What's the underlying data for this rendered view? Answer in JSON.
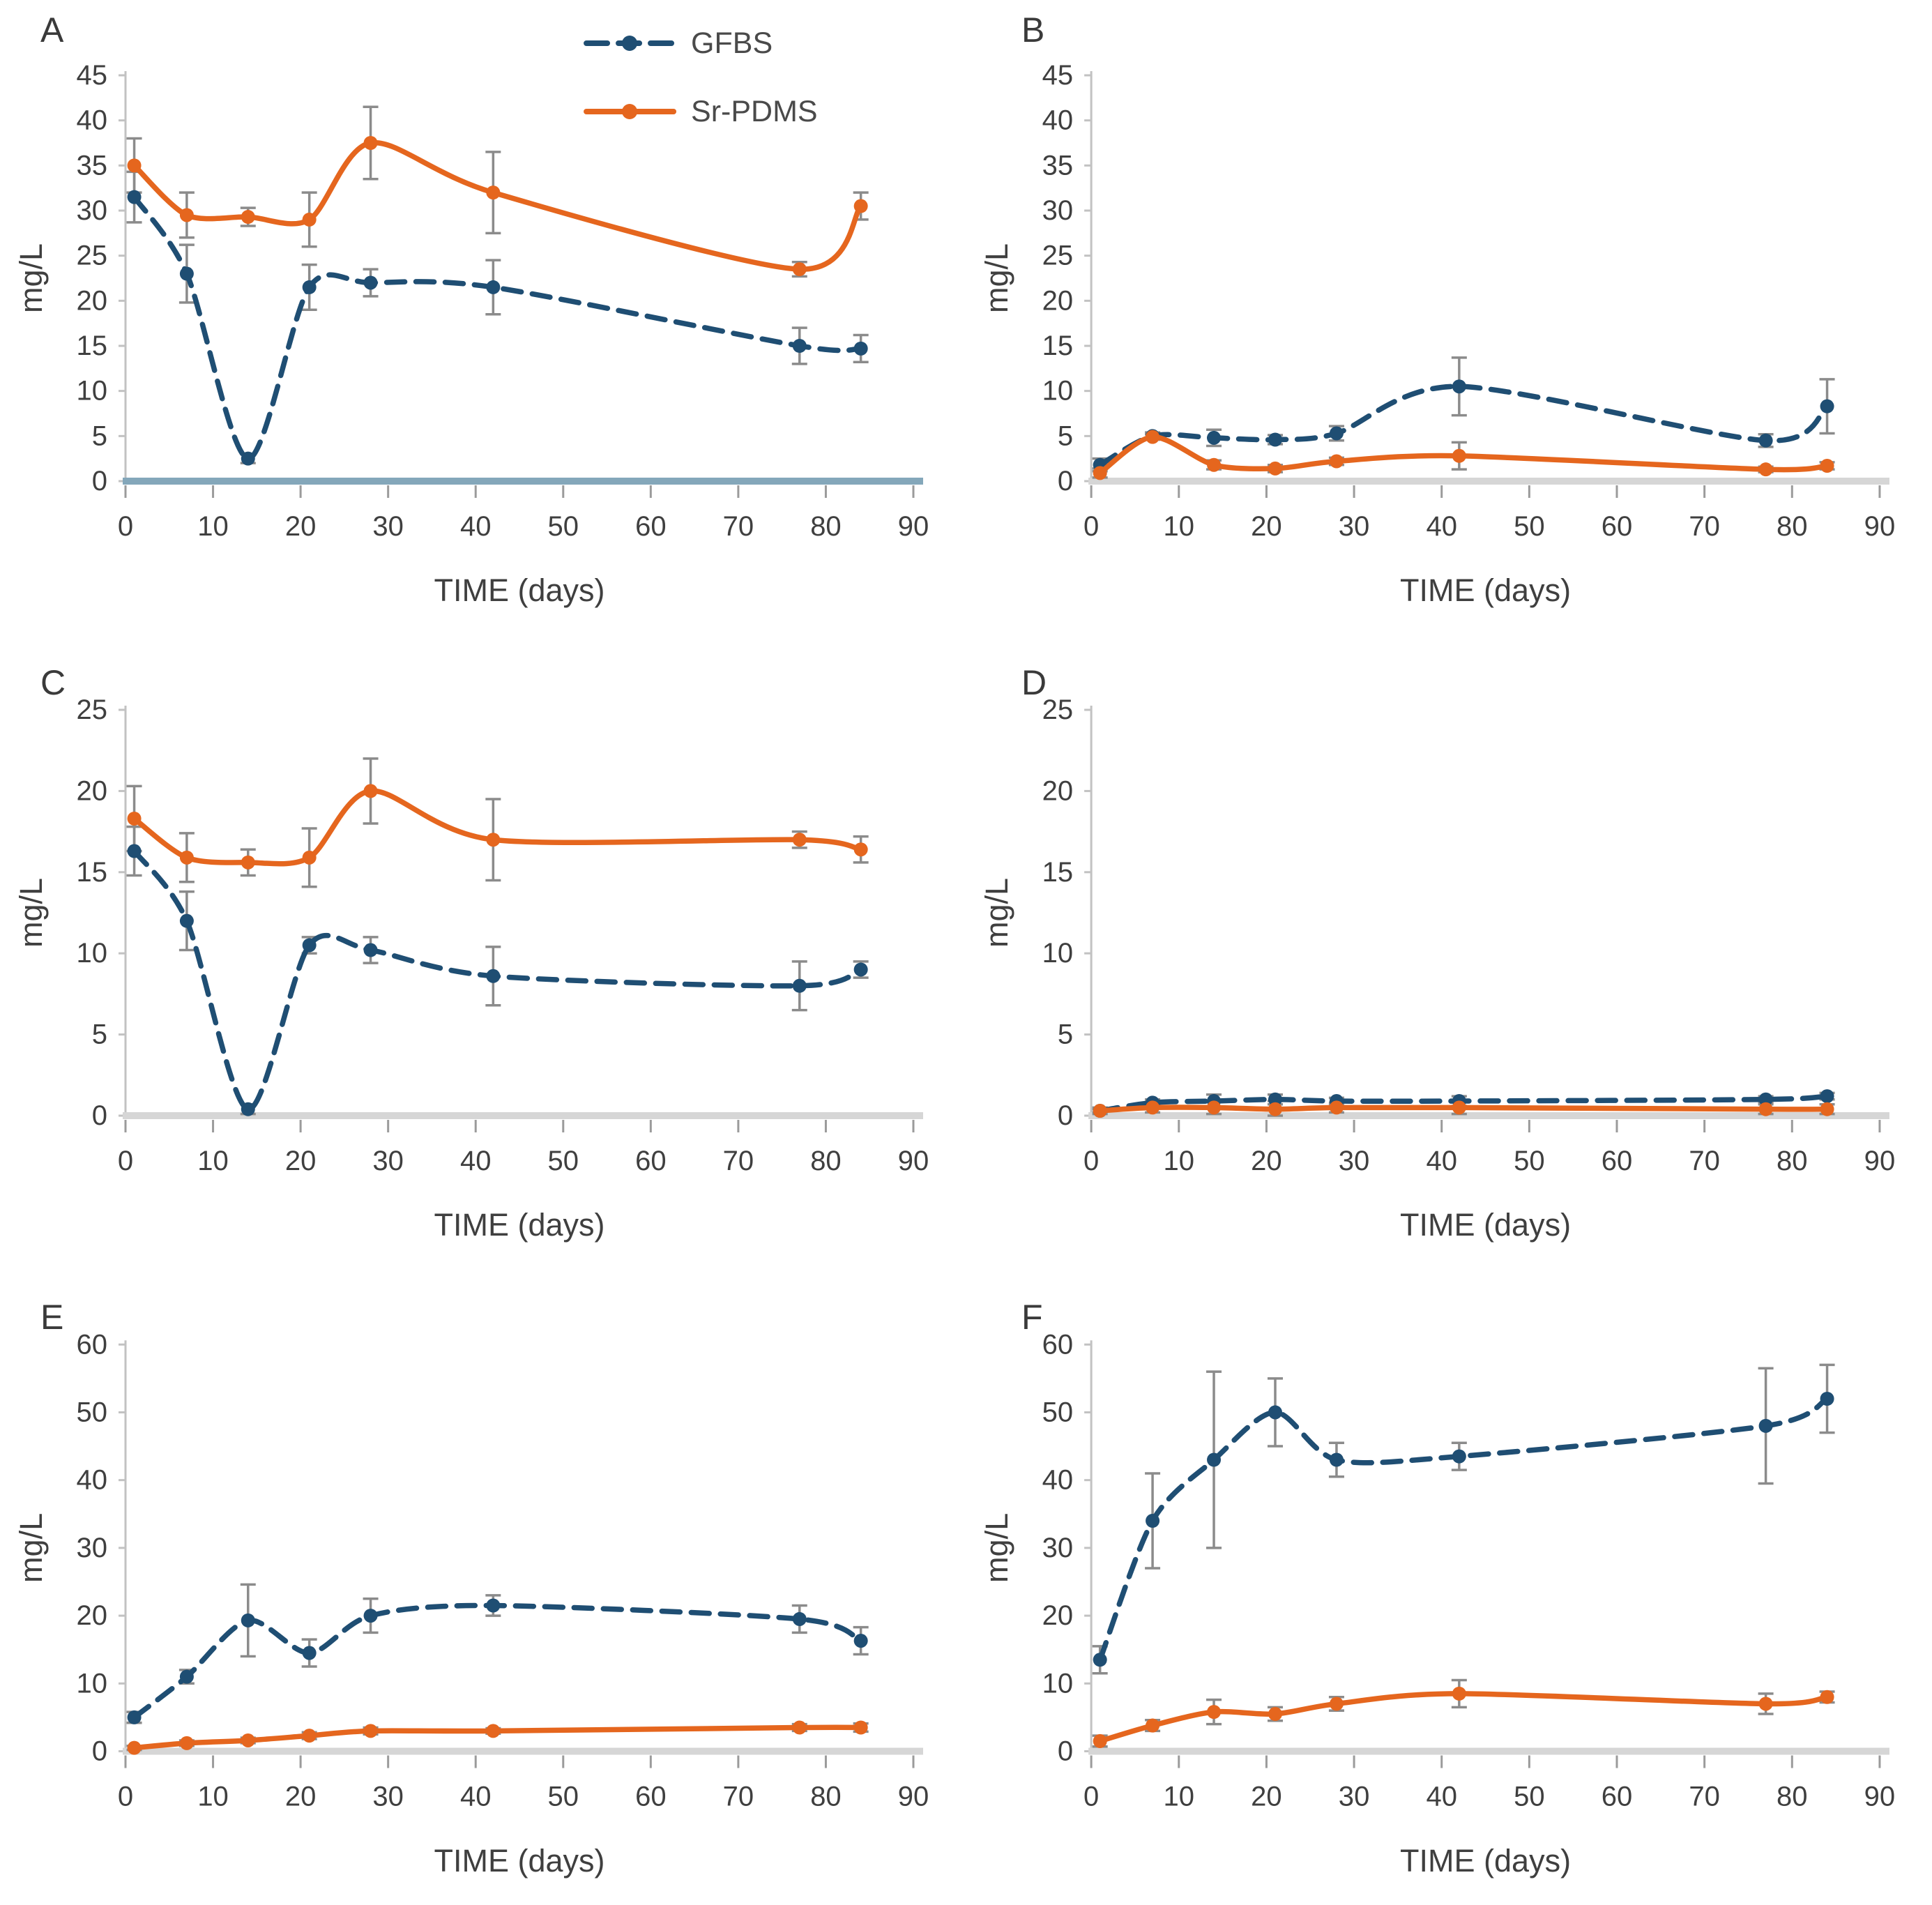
{
  "panels": [
    {
      "label": "A"
    },
    {
      "label": "B"
    },
    {
      "label": "C"
    },
    {
      "label": "D"
    },
    {
      "label": "E"
    },
    {
      "label": "F"
    }
  ],
  "colors": {
    "gfbs": "#1F4E73",
    "sr_pdms": "#E5661E",
    "error_bar": "#8B8B8B",
    "axis_text": "#3F3F3F",
    "axis_line": "#C2C2C2",
    "baseline_default": "#D6D6D6",
    "baseline_panel_a": "#84A7BA"
  },
  "chart_data": [
    {
      "type": "line",
      "panel": "A",
      "title": "",
      "xlabel": "TIME (days)",
      "ylabel": "mg/L",
      "x": [
        1,
        7,
        14,
        21,
        28,
        42,
        77,
        84
      ],
      "xlim": [
        0,
        90
      ],
      "xtick_step": 10,
      "ylim": [
        0,
        45
      ],
      "ytick_step": 5,
      "grid": false,
      "show_legend": true,
      "legend_position": "top-right-inside",
      "baseline_color": "#84A7BA",
      "series": [
        {
          "name": "GFBS",
          "color": "#1F4E73",
          "dash": true,
          "values": [
            31.5,
            23.0,
            2.5,
            21.5,
            22.0,
            21.5,
            15.0,
            14.7
          ],
          "errors": [
            2.8,
            3.2,
            0.5,
            2.5,
            1.5,
            3.0,
            2.0,
            1.5
          ]
        },
        {
          "name": "Sr-PDMS",
          "color": "#E5661E",
          "dash": false,
          "values": [
            35.0,
            29.5,
            29.3,
            29.0,
            37.5,
            32.0,
            23.5,
            30.5
          ],
          "errors": [
            3.0,
            2.5,
            1.0,
            3.0,
            4.0,
            4.5,
            0.8,
            1.5
          ]
        }
      ]
    },
    {
      "type": "line",
      "panel": "B",
      "title": "",
      "xlabel": "TIME (days)",
      "ylabel": "mg/L",
      "x": [
        1,
        7,
        14,
        21,
        28,
        42,
        77,
        84
      ],
      "xlim": [
        0,
        90
      ],
      "xtick_step": 10,
      "ylim": [
        0,
        45
      ],
      "ytick_step": 5,
      "grid": false,
      "show_legend": false,
      "baseline_color": "#D6D6D6",
      "series": [
        {
          "name": "GFBS",
          "color": "#1F4E73",
          "dash": true,
          "values": [
            1.8,
            5.0,
            4.8,
            4.6,
            5.3,
            10.5,
            4.5,
            8.3
          ],
          "errors": [
            0.7,
            0.4,
            0.9,
            0.5,
            0.8,
            3.2,
            0.7,
            3.0
          ]
        },
        {
          "name": "Sr-PDMS",
          "color": "#E5661E",
          "dash": false,
          "values": [
            0.9,
            4.9,
            1.8,
            1.4,
            2.2,
            2.8,
            1.3,
            1.7
          ],
          "errors": [
            0.5,
            0.3,
            0.5,
            0.4,
            0.4,
            1.5,
            0.3,
            0.4
          ]
        }
      ]
    },
    {
      "type": "line",
      "panel": "C",
      "title": "",
      "xlabel": "TIME (days)",
      "ylabel": "mg/L",
      "x": [
        1,
        7,
        14,
        21,
        28,
        42,
        77,
        84
      ],
      "xlim": [
        0,
        90
      ],
      "xtick_step": 10,
      "ylim": [
        0,
        25
      ],
      "ytick_step": 5,
      "grid": false,
      "show_legend": false,
      "baseline_color": "#D6D6D6",
      "series": [
        {
          "name": "GFBS",
          "color": "#1F4E73",
          "dash": true,
          "values": [
            16.3,
            12.0,
            0.4,
            10.5,
            10.2,
            8.6,
            8.0,
            9.0
          ],
          "errors": [
            1.5,
            1.8,
            0.3,
            0.5,
            0.8,
            1.8,
            1.5,
            0.5
          ]
        },
        {
          "name": "Sr-PDMS",
          "color": "#E5661E",
          "dash": false,
          "values": [
            18.3,
            15.9,
            15.6,
            15.9,
            20.0,
            17.0,
            17.0,
            16.4
          ],
          "errors": [
            2.0,
            1.5,
            0.8,
            1.8,
            2.0,
            2.5,
            0.5,
            0.8
          ]
        }
      ]
    },
    {
      "type": "line",
      "panel": "D",
      "title": "",
      "xlabel": "TIME (days)",
      "ylabel": "mg/L",
      "x": [
        1,
        7,
        14,
        21,
        28,
        42,
        77,
        84
      ],
      "xlim": [
        0,
        90
      ],
      "xtick_step": 10,
      "ylim": [
        0,
        25
      ],
      "ytick_step": 5,
      "grid": false,
      "show_legend": false,
      "baseline_color": "#D6D6D6",
      "series": [
        {
          "name": "GFBS",
          "color": "#1F4E73",
          "dash": true,
          "values": [
            0.3,
            0.8,
            0.9,
            1.0,
            0.9,
            0.9,
            1.0,
            1.2
          ],
          "errors": [
            0.1,
            0.2,
            0.4,
            0.3,
            0.2,
            0.3,
            0.2,
            0.2
          ]
        },
        {
          "name": "Sr-PDMS",
          "color": "#E5661E",
          "dash": false,
          "values": [
            0.3,
            0.5,
            0.5,
            0.4,
            0.5,
            0.5,
            0.4,
            0.4
          ],
          "errors": [
            0.2,
            0.3,
            0.4,
            0.5,
            0.3,
            0.4,
            0.3,
            0.3
          ]
        }
      ]
    },
    {
      "type": "line",
      "panel": "E",
      "title": "",
      "xlabel": "TIME (days)",
      "ylabel": "mg/L",
      "x": [
        1,
        7,
        14,
        21,
        28,
        42,
        77,
        84
      ],
      "xlim": [
        0,
        90
      ],
      "xtick_step": 10,
      "ylim": [
        0,
        60
      ],
      "ytick_step": 10,
      "grid": false,
      "show_legend": false,
      "baseline_color": "#D6D6D6",
      "series": [
        {
          "name": "GFBS",
          "color": "#1F4E73",
          "dash": true,
          "values": [
            5.0,
            11.0,
            19.3,
            14.5,
            20.0,
            21.5,
            19.5,
            16.3
          ],
          "errors": [
            0.8,
            1.0,
            5.3,
            2.0,
            2.5,
            1.5,
            2.0,
            2.0
          ]
        },
        {
          "name": "Sr-PDMS",
          "color": "#E5661E",
          "dash": false,
          "values": [
            0.5,
            1.2,
            1.6,
            2.3,
            3.0,
            3.0,
            3.5,
            3.5
          ],
          "errors": [
            0.3,
            0.4,
            0.4,
            0.5,
            0.5,
            0.4,
            0.5,
            0.6
          ]
        }
      ]
    },
    {
      "type": "line",
      "panel": "F",
      "title": "",
      "xlabel": "TIME (days)",
      "ylabel": "mg/L",
      "x": [
        1,
        7,
        14,
        21,
        28,
        42,
        77,
        84
      ],
      "xlim": [
        0,
        90
      ],
      "xtick_step": 10,
      "ylim": [
        0,
        60
      ],
      "ytick_step": 10,
      "grid": false,
      "show_legend": false,
      "baseline_color": "#D6D6D6",
      "series": [
        {
          "name": "GFBS",
          "color": "#1F4E73",
          "dash": true,
          "values": [
            13.5,
            34.0,
            43.0,
            50.0,
            43.0,
            43.5,
            48.0,
            52.0
          ],
          "errors": [
            2.0,
            7.0,
            13.0,
            5.0,
            2.5,
            2.0,
            8.5,
            5.0
          ]
        },
        {
          "name": "Sr-PDMS",
          "color": "#E5661E",
          "dash": false,
          "values": [
            1.5,
            3.8,
            5.8,
            5.5,
            7.0,
            8.5,
            7.0,
            8.0
          ],
          "errors": [
            0.8,
            0.8,
            1.8,
            1.0,
            1.0,
            2.0,
            1.5,
            0.8
          ]
        }
      ]
    }
  ]
}
